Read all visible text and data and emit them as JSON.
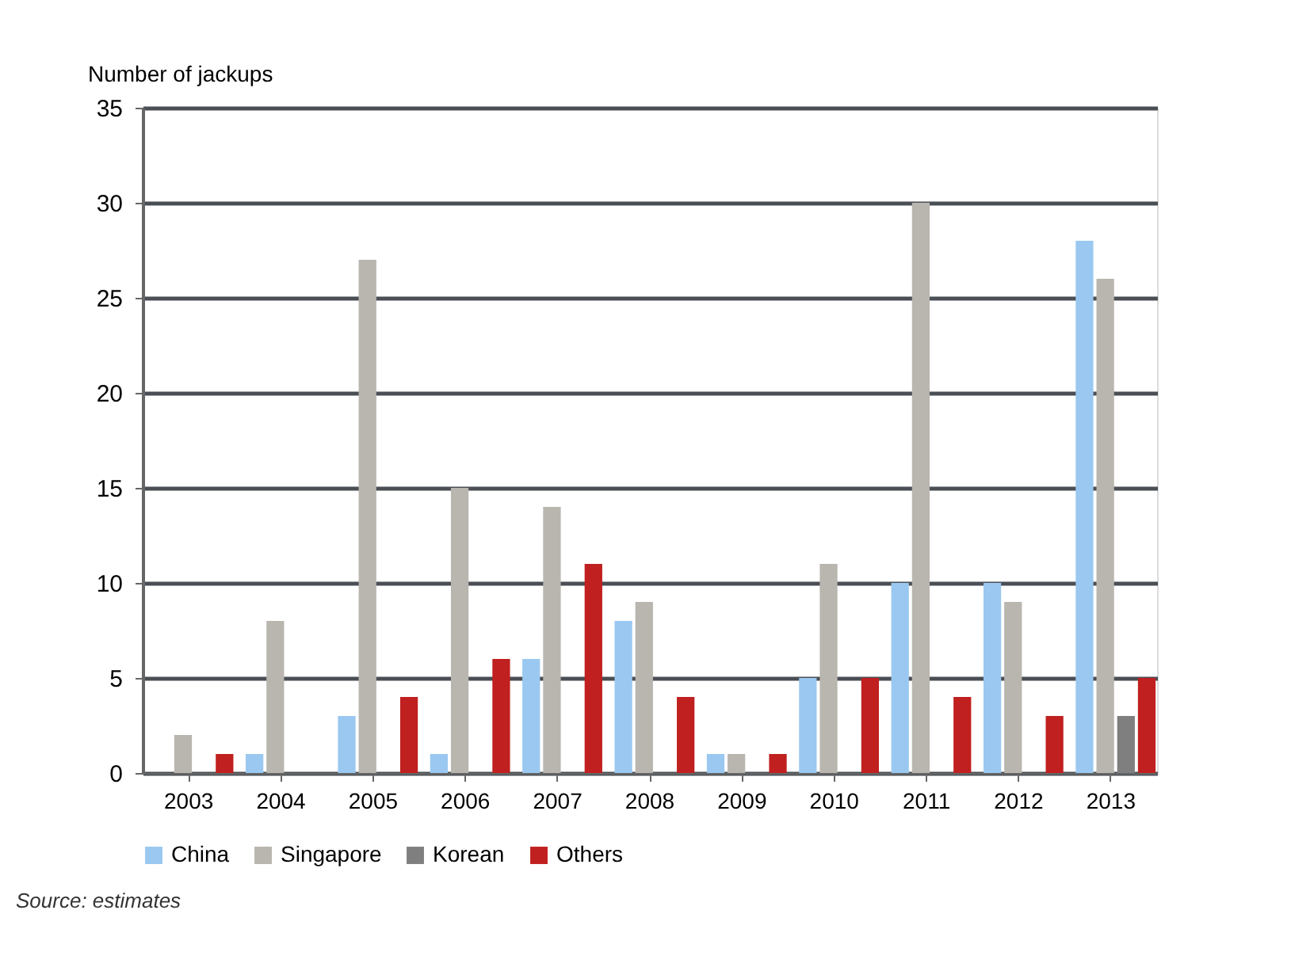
{
  "chart_data": {
    "type": "bar",
    "ylabel": "Number of jackups",
    "categories": [
      "2003",
      "2004",
      "2005",
      "2006",
      "2007",
      "2008",
      "2009",
      "2010",
      "2011",
      "2012",
      "2013"
    ],
    "series": [
      {
        "name": "China",
        "color": "#9ac8f0",
        "values": [
          0,
          1,
          3,
          1,
          6,
          8,
          1,
          5,
          10,
          10,
          28
        ]
      },
      {
        "name": "Singapore",
        "color": "#b9b5af",
        "values": [
          2,
          8,
          27,
          15,
          14,
          9,
          1,
          11,
          30,
          9,
          26
        ]
      },
      {
        "name": "Korean",
        "color": "#7f7f7f",
        "values": [
          0,
          0,
          0,
          0,
          0,
          0,
          0,
          0,
          0,
          0,
          3
        ]
      },
      {
        "name": "Others",
        "color": "#c0201f",
        "values": [
          1,
          0,
          4,
          6,
          11,
          4,
          1,
          5,
          4,
          3,
          5
        ]
      }
    ],
    "ylim": [
      0,
      35
    ],
    "yticks": [
      0,
      5,
      10,
      15,
      20,
      25,
      30,
      35
    ],
    "grid": "y",
    "legend": "bottom",
    "annotations": [
      "Source: estimates"
    ]
  }
}
